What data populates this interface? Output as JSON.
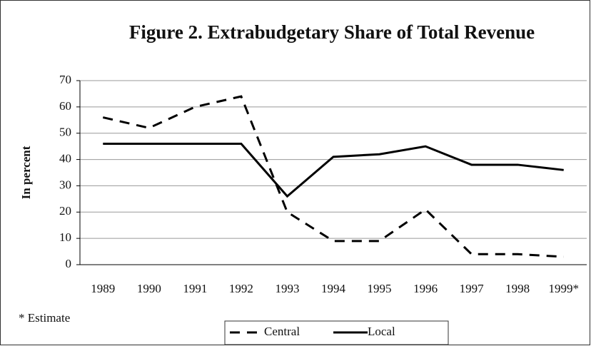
{
  "chart_data": {
    "type": "line",
    "title": "Figure 2. Extrabudgetary Share of Total Revenue",
    "y_label": "In percent",
    "note": "* Estimate",
    "categories": [
      "1989",
      "1990",
      "1991",
      "1992",
      "1993",
      "1994",
      "1995",
      "1996",
      "1997",
      "1998",
      "1999*"
    ],
    "series": [
      {
        "name": "Central",
        "color": "#000000",
        "dash": "dashed",
        "values": [
          56,
          52,
          60,
          64,
          20,
          9,
          9,
          21,
          4,
          4,
          3
        ]
      },
      {
        "name": "Local",
        "color": "#000000",
        "dash": "solid",
        "values": [
          46,
          46,
          46,
          46,
          26,
          41,
          42,
          45,
          38,
          38,
          36
        ]
      }
    ],
    "ylim": [
      0,
      70
    ],
    "yticks": [
      0,
      10,
      20,
      30,
      40,
      50,
      60,
      70
    ],
    "grid": true,
    "legend": "bottom"
  }
}
